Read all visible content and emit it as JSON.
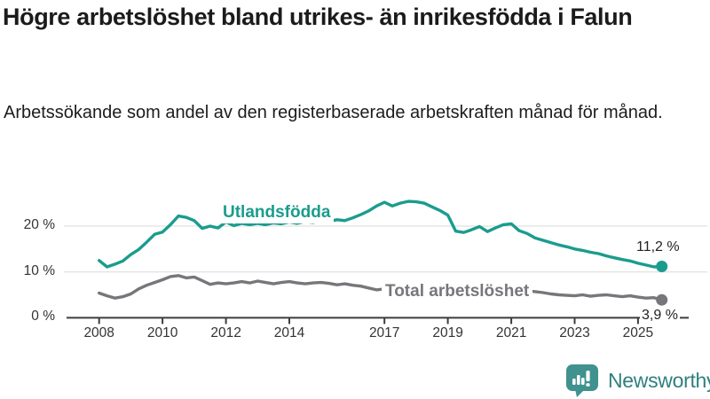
{
  "header": {
    "title": "Högre arbetslöshet bland utrikes- än inrikesfödda i Falun",
    "subtitle": "Arbetssökande som andel av den registerbaserade arbetskraften månad för månad."
  },
  "chart_data": {
    "type": "line",
    "x_unit": "year-month",
    "y_unit": "percent of labour force",
    "xlim": [
      2007,
      2026.5
    ],
    "ylim": [
      0,
      30
    ],
    "grid": "horizontal",
    "x_ticks": [
      2008,
      2010,
      2012,
      2014,
      2017,
      2019,
      2021,
      2023,
      2025
    ],
    "x_tick_labels": [
      "2008",
      "2010",
      "2012",
      "2014",
      "2017",
      "2019",
      "2021",
      "2023",
      "2025"
    ],
    "y_ticks": [
      0,
      10,
      20
    ],
    "y_tick_labels": [
      "0 %",
      "10 %",
      "20 %"
    ],
    "series": [
      {
        "name": "Utlandsfödda",
        "color": "#1a9c8d",
        "end_label": "11,2 %",
        "end_value": 11.2,
        "points": [
          [
            2008.0,
            12.5
          ],
          [
            2008.25,
            11.1
          ],
          [
            2008.5,
            11.7
          ],
          [
            2008.75,
            12.4
          ],
          [
            2009.0,
            13.8
          ],
          [
            2009.25,
            14.9
          ],
          [
            2009.5,
            16.5
          ],
          [
            2009.75,
            18.2
          ],
          [
            2010.0,
            18.7
          ],
          [
            2010.25,
            20.3
          ],
          [
            2010.5,
            22.2
          ],
          [
            2010.75,
            21.9
          ],
          [
            2011.0,
            21.2
          ],
          [
            2011.25,
            19.5
          ],
          [
            2011.5,
            20.0
          ],
          [
            2011.75,
            19.6
          ],
          [
            2012.0,
            20.9
          ],
          [
            2012.25,
            20.1
          ],
          [
            2012.5,
            20.6
          ],
          [
            2012.75,
            20.3
          ],
          [
            2013.0,
            20.6
          ],
          [
            2013.25,
            20.3
          ],
          [
            2013.5,
            20.7
          ],
          [
            2013.75,
            20.5
          ],
          [
            2014.0,
            20.9
          ],
          [
            2014.25,
            20.6
          ],
          [
            2014.5,
            21.0
          ],
          [
            2014.75,
            20.8
          ],
          [
            2015.0,
            21.2
          ],
          [
            2015.25,
            21.0
          ],
          [
            2015.5,
            21.4
          ],
          [
            2015.75,
            21.2
          ],
          [
            2016.0,
            21.8
          ],
          [
            2016.25,
            22.5
          ],
          [
            2016.5,
            23.3
          ],
          [
            2016.75,
            24.4
          ],
          [
            2017.0,
            25.2
          ],
          [
            2017.25,
            24.4
          ],
          [
            2017.5,
            25.0
          ],
          [
            2017.75,
            25.4
          ],
          [
            2018.0,
            25.3
          ],
          [
            2018.25,
            25.0
          ],
          [
            2018.5,
            24.2
          ],
          [
            2018.75,
            23.4
          ],
          [
            2019.0,
            22.4
          ],
          [
            2019.25,
            18.9
          ],
          [
            2019.5,
            18.6
          ],
          [
            2019.75,
            19.2
          ],
          [
            2020.0,
            19.9
          ],
          [
            2020.25,
            18.8
          ],
          [
            2020.5,
            19.6
          ],
          [
            2020.75,
            20.3
          ],
          [
            2021.0,
            20.5
          ],
          [
            2021.25,
            19.0
          ],
          [
            2021.5,
            18.4
          ],
          [
            2021.75,
            17.4
          ],
          [
            2022.0,
            16.9
          ],
          [
            2022.25,
            16.4
          ],
          [
            2022.5,
            15.9
          ],
          [
            2022.75,
            15.5
          ],
          [
            2023.0,
            15.0
          ],
          [
            2023.25,
            14.7
          ],
          [
            2023.5,
            14.3
          ],
          [
            2023.75,
            14.0
          ],
          [
            2024.0,
            13.5
          ],
          [
            2024.25,
            13.1
          ],
          [
            2024.5,
            12.7
          ],
          [
            2024.75,
            12.4
          ],
          [
            2025.0,
            11.9
          ],
          [
            2025.25,
            11.5
          ],
          [
            2025.5,
            11.1
          ],
          [
            2025.75,
            11.2
          ]
        ]
      },
      {
        "name": "Total arbetslöshet",
        "color": "#76767b",
        "end_label": "3,9 %",
        "end_value": 3.9,
        "points": [
          [
            2008.0,
            5.4
          ],
          [
            2008.25,
            4.8
          ],
          [
            2008.5,
            4.3
          ],
          [
            2008.75,
            4.6
          ],
          [
            2009.0,
            5.2
          ],
          [
            2009.25,
            6.3
          ],
          [
            2009.5,
            7.1
          ],
          [
            2009.75,
            7.7
          ],
          [
            2010.0,
            8.3
          ],
          [
            2010.25,
            9.0
          ],
          [
            2010.5,
            9.2
          ],
          [
            2010.75,
            8.7
          ],
          [
            2011.0,
            8.9
          ],
          [
            2011.25,
            8.1
          ],
          [
            2011.5,
            7.3
          ],
          [
            2011.75,
            7.6
          ],
          [
            2012.0,
            7.4
          ],
          [
            2012.25,
            7.6
          ],
          [
            2012.5,
            7.9
          ],
          [
            2012.75,
            7.6
          ],
          [
            2013.0,
            8.0
          ],
          [
            2013.25,
            7.7
          ],
          [
            2013.5,
            7.4
          ],
          [
            2013.75,
            7.7
          ],
          [
            2014.0,
            7.9
          ],
          [
            2014.25,
            7.6
          ],
          [
            2014.5,
            7.4
          ],
          [
            2014.75,
            7.6
          ],
          [
            2015.0,
            7.7
          ],
          [
            2015.25,
            7.5
          ],
          [
            2015.5,
            7.2
          ],
          [
            2015.75,
            7.4
          ],
          [
            2016.0,
            7.1
          ],
          [
            2016.25,
            6.9
          ],
          [
            2016.5,
            6.5
          ],
          [
            2016.75,
            6.1
          ],
          [
            2017.0,
            6.3
          ],
          [
            2017.25,
            6.1
          ],
          [
            2017.5,
            5.9
          ],
          [
            2017.75,
            5.8
          ],
          [
            2018.0,
            5.7
          ],
          [
            2018.25,
            5.5
          ],
          [
            2018.5,
            5.4
          ],
          [
            2018.75,
            5.4
          ],
          [
            2019.0,
            5.5
          ],
          [
            2019.25,
            5.4
          ],
          [
            2019.5,
            5.6
          ],
          [
            2019.75,
            5.7
          ],
          [
            2020.0,
            5.9
          ],
          [
            2020.25,
            6.6
          ],
          [
            2020.5,
            6.9
          ],
          [
            2020.75,
            6.6
          ],
          [
            2021.0,
            6.4
          ],
          [
            2021.25,
            6.2
          ],
          [
            2021.5,
            5.9
          ],
          [
            2021.75,
            5.7
          ],
          [
            2022.0,
            5.5
          ],
          [
            2022.25,
            5.2
          ],
          [
            2022.5,
            5.0
          ],
          [
            2022.75,
            4.9
          ],
          [
            2023.0,
            4.8
          ],
          [
            2023.25,
            5.0
          ],
          [
            2023.5,
            4.7
          ],
          [
            2023.75,
            4.9
          ],
          [
            2024.0,
            5.0
          ],
          [
            2024.25,
            4.8
          ],
          [
            2024.5,
            4.6
          ],
          [
            2024.75,
            4.8
          ],
          [
            2025.0,
            4.5
          ],
          [
            2025.25,
            4.3
          ],
          [
            2025.5,
            4.4
          ],
          [
            2025.75,
            3.9
          ]
        ]
      }
    ]
  },
  "branding": {
    "label": "Newsworthy",
    "icon": "newsworthy-bar-chart-bubble-icon",
    "icon_color": "#3f928e",
    "text_color": "#2f7f7f"
  },
  "colors": {
    "grid": "#dadada",
    "axis": "#3c3c3c",
    "title_text": "#1b1b1b",
    "tick_text": "#333333"
  }
}
